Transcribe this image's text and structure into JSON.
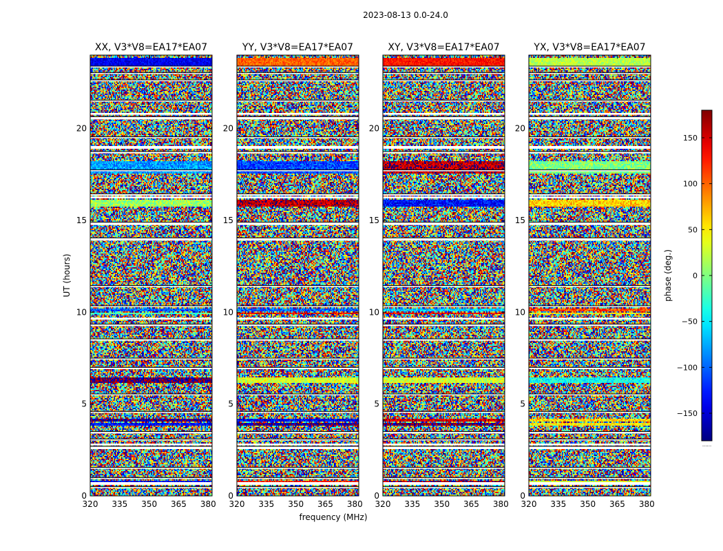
{
  "chart_data": {
    "type": "heatmap",
    "suptitle": "2023-08-13 0.0-24.0",
    "xlabel": "frequency (MHz)",
    "ylabel": "UT (hours)",
    "xlim": [
      320,
      382
    ],
    "ylim": [
      0,
      24
    ],
    "xticks": [
      320,
      335,
      350,
      365,
      380
    ],
    "yticks": [
      0,
      5,
      10,
      15,
      20
    ],
    "panels": [
      {
        "title": "XX, V3*V8=EA17*EA07",
        "phase_offset": -140
      },
      {
        "title": "YY, V3*V8=EA17*EA07",
        "phase_offset": 100
      },
      {
        "title": "XY, V3*V8=EA17*EA07",
        "phase_offset": 130
      },
      {
        "title": "YX, V3*V8=EA17*EA07",
        "phase_offset": 20
      }
    ],
    "colorbar": {
      "label": "phase (deg.)",
      "range": [
        -180,
        180
      ],
      "ticks": [
        -150,
        -100,
        -50,
        0,
        50,
        100,
        150
      ],
      "colormap": "jet",
      "below_label": "......"
    },
    "flagged_gaps_ut_hours": [
      [
        0.45,
        0.5
      ],
      [
        0.95,
        1.0
      ],
      [
        1.5,
        1.55
      ],
      [
        2.55,
        2.7
      ],
      [
        3.05,
        3.1
      ],
      [
        3.4,
        3.5
      ],
      [
        4.55,
        4.6
      ],
      [
        5.5,
        5.55
      ],
      [
        6.9,
        7.0
      ],
      [
        7.45,
        7.5
      ],
      [
        8.45,
        8.55
      ],
      [
        9.25,
        9.35
      ],
      [
        10.3,
        10.35
      ],
      [
        11.4,
        11.45
      ],
      [
        13.9,
        14.05
      ],
      [
        14.75,
        14.9
      ],
      [
        16.35,
        16.45
      ],
      [
        17.7,
        17.75
      ],
      [
        18.65,
        18.75
      ],
      [
        19.5,
        19.55
      ],
      [
        20.5,
        20.65
      ],
      [
        21.5,
        21.55
      ],
      [
        22.6,
        22.65
      ],
      [
        23.0,
        23.05
      ],
      [
        23.35,
        23.4
      ]
    ],
    "blank_segments_ut_hours": [
      [
        0.6,
        0.75
      ],
      [
        2.75,
        2.85
      ],
      [
        9.6,
        9.7
      ],
      [
        16.2,
        16.3
      ],
      [
        18.9,
        19.05
      ],
      [
        20.75,
        20.85
      ]
    ],
    "coherent_bands_ut_hours": [
      {
        "ut": 0.78,
        "h": 0.1,
        "offsets": [
          0,
          30,
          40,
          10
        ]
      },
      {
        "ut": 2.6,
        "h": 0.12,
        "offsets": [
          0,
          60,
          10,
          0
        ]
      },
      {
        "ut": 3.9,
        "h": 0.15,
        "offsets": [
          10,
          90,
          50,
          30
        ]
      },
      {
        "ut": 4.1,
        "h": 0.1,
        "offsets": [
          -30,
          120,
          20,
          40
        ]
      },
      {
        "ut": 6.3,
        "h": 0.25,
        "offsets": [
          -40,
          -70,
          -100,
          -60
        ]
      },
      {
        "ut": 9.95,
        "h": 0.08,
        "offsets": [
          120,
          40,
          10,
          30
        ]
      },
      {
        "ut": 10.1,
        "h": 0.1,
        "offsets": [
          40,
          160,
          170,
          90
        ]
      },
      {
        "ut": 15.95,
        "h": 0.35,
        "offsets": [
          150,
          60,
          100,
          40
        ]
      },
      {
        "ut": 17.9,
        "h": 0.6,
        "offsets": [
          60,
          150,
          30,
          -20
        ]
      },
      {
        "ut": 23.6,
        "h": 0.4,
        "offsets": [
          0,
          0,
          0,
          0
        ]
      }
    ]
  }
}
